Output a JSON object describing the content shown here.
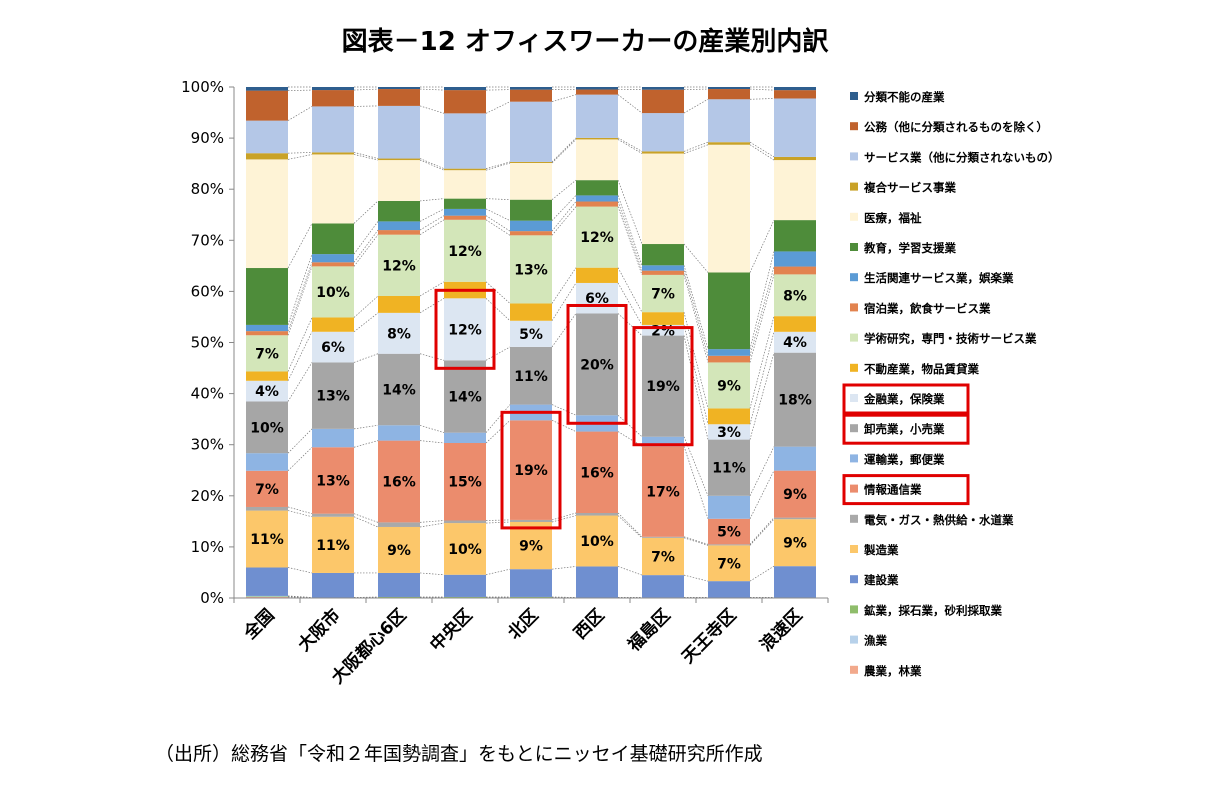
{
  "title": "図表－12 オフィスワーカーの産業別内訳",
  "source": "（出所）総務省「令和２年国勢調査」をもとにニッセイ基礎研究所作成",
  "chart_data": {
    "type": "bar",
    "stacked": true,
    "ylim": [
      0,
      100
    ],
    "yticks": [
      "0%",
      "10%",
      "20%",
      "30%",
      "40%",
      "50%",
      "60%",
      "70%",
      "80%",
      "90%",
      "100%"
    ],
    "grid": false,
    "legend_position": "right",
    "categories": [
      "全国",
      "大阪市",
      "大阪都心6区",
      "中央区",
      "北区",
      "西区",
      "福島区",
      "天王寺区",
      "浪速区"
    ],
    "series": [
      {
        "name": "農業，林業",
        "color": "#f2a98c",
        "values": [
          0.2,
          0.1,
          0.1,
          0.1,
          0.1,
          0.1,
          0.1,
          0.1,
          0.1
        ]
      },
      {
        "name": "漁業",
        "color": "#b7d1ea",
        "values": [
          0.1,
          0.0,
          0.0,
          0.0,
          0.0,
          0.0,
          0.0,
          0.0,
          0.0
        ]
      },
      {
        "name": "鉱業，採石業，砂利採取業",
        "color": "#8fbd6b",
        "values": [
          0.1,
          0.0,
          0.1,
          0.1,
          0.1,
          0.0,
          0.0,
          0.0,
          0.0
        ]
      },
      {
        "name": "建設業",
        "color": "#6f8fd0",
        "values": [
          5.5,
          4.8,
          4.7,
          4.3,
          5.3,
          6.1,
          4.2,
          3.2,
          6.0
        ]
      },
      {
        "name": "製造業",
        "color": "#fcc76a",
        "values": [
          11,
          11,
          9,
          10,
          9,
          10,
          7,
          7,
          9
        ]
      },
      {
        "name": "電気・ガス・熱供給・水道業",
        "color": "#a9a9a9",
        "values": [
          0.7,
          0.6,
          0.9,
          0.5,
          0.4,
          0.5,
          0.2,
          0.2,
          0.3
        ]
      },
      {
        "name": "情報通信業",
        "color": "#eb8c6d",
        "values": [
          7,
          13,
          16,
          15,
          19,
          16,
          17,
          5,
          9
        ]
      },
      {
        "name": "運輸業，郵便業",
        "color": "#8eb4e3",
        "values": [
          3.4,
          3.6,
          3.0,
          2.0,
          3.0,
          3.2,
          1.8,
          4.5,
          4.6
        ]
      },
      {
        "name": "卸売業，小売業",
        "color": "#a6a6a6",
        "values": [
          10,
          13,
          14,
          14,
          11,
          20,
          19,
          11,
          18
        ]
      },
      {
        "name": "金融業，保険業",
        "color": "#dce6f2",
        "values": [
          4,
          6,
          8,
          12,
          5,
          6,
          2,
          3,
          4
        ]
      },
      {
        "name": "不動産業，物品賃貸業",
        "color": "#f0b323",
        "values": [
          1.8,
          2.8,
          3.3,
          3.2,
          3.3,
          3.0,
          2.4,
          3.1,
          3.0
        ]
      },
      {
        "name": "学術研究，専門・技術サービス業",
        "color": "#d3e6b9",
        "values": [
          7,
          10,
          12,
          12,
          13,
          12,
          7,
          9,
          8
        ]
      },
      {
        "name": "宿泊業，飲食サービス業",
        "color": "#e2834f",
        "values": [
          0.8,
          0.8,
          0.9,
          0.8,
          0.8,
          1.0,
          0.8,
          1.3,
          1.5
        ]
      },
      {
        "name": "生活関連サービス業，娯楽業",
        "color": "#5b9bd5",
        "values": [
          1.2,
          1.6,
          1.7,
          1.3,
          2.0,
          1.2,
          1.0,
          1.3,
          2.9
        ]
      },
      {
        "name": "教育，学習支援業",
        "color": "#4e8c3a",
        "values": [
          11,
          6,
          4,
          2,
          4,
          3,
          4,
          15,
          6
        ]
      },
      {
        "name": "医療，福祉",
        "color": "#fef3d6",
        "values": [
          21,
          13.5,
          8,
          5.5,
          7,
          8,
          17,
          25,
          11.5
        ]
      },
      {
        "name": "複合サービス事業",
        "color": "#c9a227",
        "values": [
          1.2,
          0.4,
          0.3,
          0.3,
          0.2,
          0.3,
          0.4,
          0.5,
          0.6
        ]
      },
      {
        "name": "サービス業（他に分類されないもの）",
        "color": "#b4c7e7",
        "values": [
          6.3,
          9,
          10.3,
          10.7,
          11.5,
          8.5,
          7.2,
          8.4,
          11.2
        ]
      },
      {
        "name": "公務（他に分類されるものを除く）",
        "color": "#c0622d",
        "values": [
          5.8,
          3.2,
          3.3,
          4.5,
          2.3,
          1.0,
          4.4,
          2.0,
          1.6
        ]
      },
      {
        "name": "分類不能の産業",
        "color": "#2e5e8e",
        "values": [
          0.7,
          0.6,
          0.4,
          0.6,
          0.5,
          0.5,
          0.5,
          0.4,
          0.6
        ]
      }
    ],
    "data_labels": [
      {
        "series": "製造業",
        "values": [
          "11%",
          "11%",
          "9%",
          "10%",
          "9%",
          "10%",
          "7%",
          "7%",
          "9%"
        ]
      },
      {
        "series": "情報通信業",
        "values": [
          "7%",
          "13%",
          "16%",
          "15%",
          "19%",
          "16%",
          "17%",
          "5%",
          "9%"
        ]
      },
      {
        "series": "卸売業，小売業",
        "values": [
          "10%",
          "13%",
          "14%",
          "14%",
          "11%",
          "20%",
          "19%",
          "11%",
          "18%"
        ]
      },
      {
        "series": "金融業，保険業",
        "values": [
          "4%",
          "6%",
          "8%",
          "12%",
          "5%",
          "6%",
          "2%",
          "3%",
          "4%"
        ]
      },
      {
        "series": "学術研究，専門・技術サービス業",
        "values": [
          "7%",
          "10%",
          "12%",
          "12%",
          "13%",
          "12%",
          "7%",
          "9%",
          "8%"
        ]
      }
    ],
    "highlight_boxes": [
      {
        "category": "中央区",
        "series": "金融業，保険業"
      },
      {
        "category": "北区",
        "series": "情報通信業"
      },
      {
        "category": "西区",
        "series": "卸売業，小売業"
      },
      {
        "category": "福島区",
        "series": "卸売業，小売業"
      }
    ],
    "highlighted_legend": [
      "金融業，保険業",
      "卸売業，小売業",
      "情報通信業"
    ],
    "highlight_color": "#e00000"
  }
}
